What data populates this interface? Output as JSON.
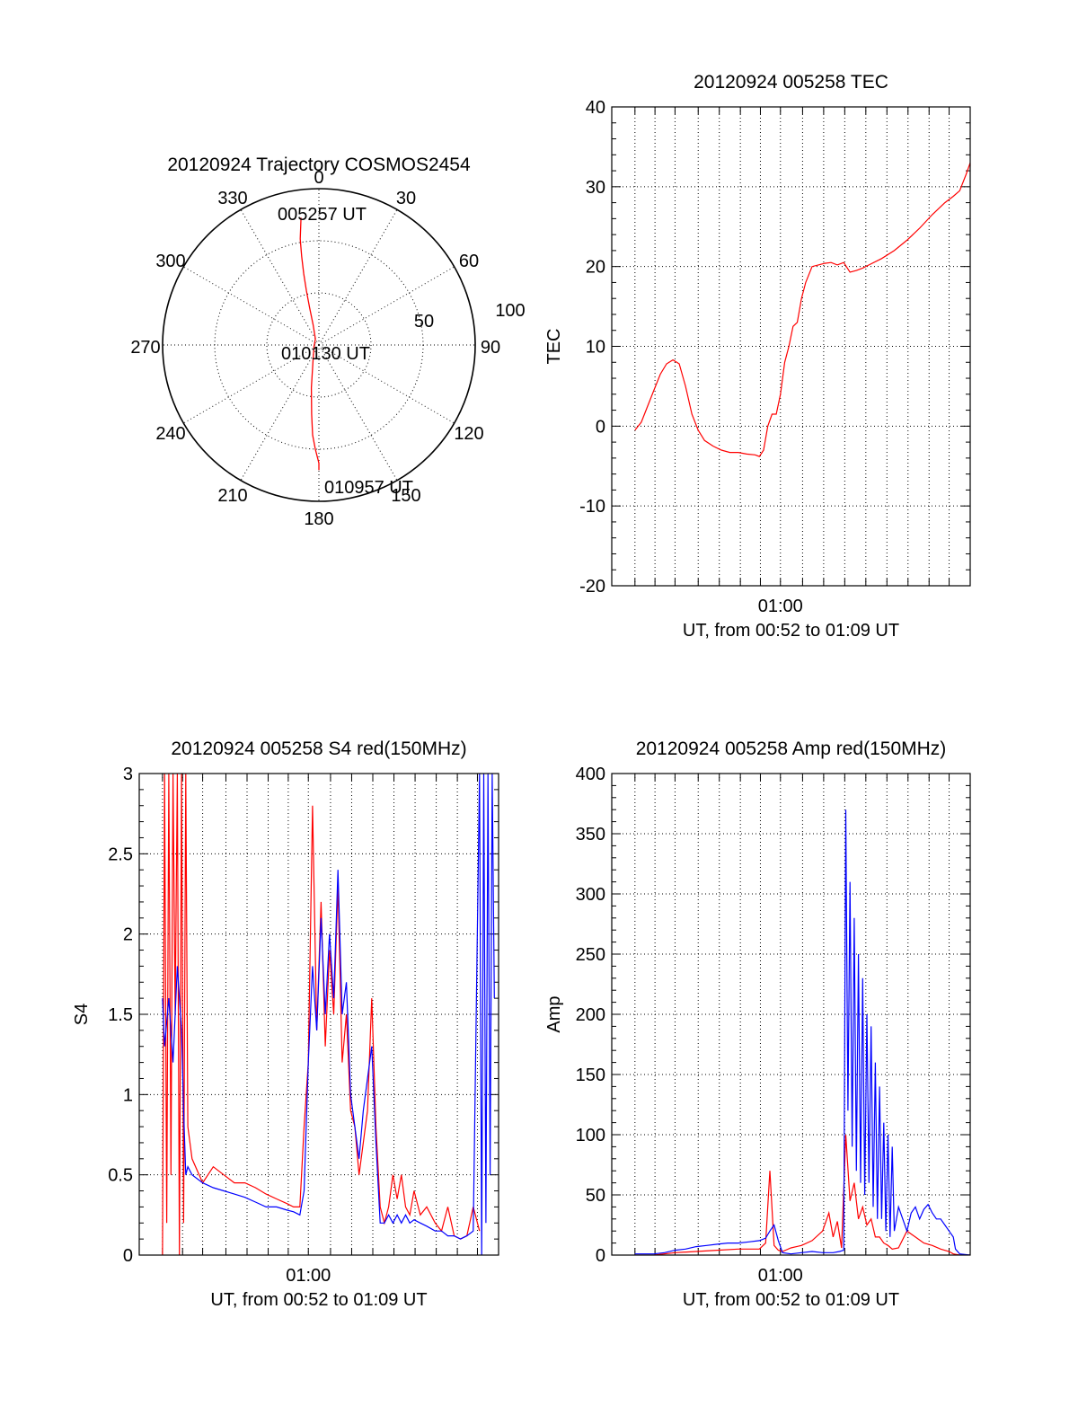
{
  "colors": {
    "red": "#ff0000",
    "blue": "#0000ff",
    "axis": "#000000"
  },
  "chart_data": [
    {
      "type": "polar",
      "title": "20120924 Trajectory COSMOS2454",
      "azimuth_labels": [
        "0",
        "30",
        "60",
        "90",
        "120",
        "150",
        "180",
        "210",
        "240",
        "270",
        "300",
        "330"
      ],
      "radial_labels": [
        "50",
        "100"
      ],
      "annotations": [
        "005257 UT",
        "010130 UT",
        "010957 UT"
      ],
      "series": [
        {
          "color": "red",
          "note": "track points as [azimuth_deg, zenith_angle]",
          "points": [
            [
              352,
              74
            ],
            [
              350,
              62
            ],
            [
              349,
              52
            ],
            [
              348,
              42
            ],
            [
              347,
              32
            ],
            [
              346,
              22
            ],
            [
              344,
              12
            ],
            [
              330,
              4
            ],
            [
              250,
              3
            ],
            [
              200,
              10
            ],
            [
              190,
              25
            ],
            [
              186,
              40
            ],
            [
              184,
              52
            ],
            [
              182,
              60
            ],
            [
              180,
              68
            ],
            [
              180,
              72
            ]
          ]
        }
      ],
      "ylim": [
        0,
        100
      ]
    },
    {
      "type": "line",
      "title": "20120924 005258 TEC",
      "xlabel": "UT, from 00:52 to 01:09 UT",
      "ylabel": "TEC",
      "x_tick_label": "01:00",
      "y_tick_labels": [
        "-20",
        "-10",
        "0",
        "10",
        "20",
        "30",
        "40"
      ],
      "xlim": [
        52.0,
        69.0
      ],
      "ylim": [
        -20,
        40
      ],
      "grid": true,
      "series": [
        {
          "color": "red",
          "x": [
            53.1,
            53.4,
            53.7,
            54.0,
            54.3,
            54.6,
            54.9,
            55.2,
            55.5,
            55.8,
            56.1,
            56.4,
            56.8,
            57.2,
            57.6,
            58.0,
            58.4,
            58.8,
            59.0,
            59.2,
            59.4,
            59.6,
            59.8,
            60.0,
            60.2,
            60.4,
            60.6,
            60.8,
            61.0,
            61.2,
            61.5,
            61.8,
            62.1,
            62.4,
            62.7,
            63.0,
            63.3,
            63.6,
            63.9,
            64.2,
            64.8,
            65.4,
            66.0,
            66.6,
            67.2,
            67.8,
            68.2,
            68.5,
            68.8,
            69.0
          ],
          "y": [
            -0.5,
            0.5,
            2.5,
            4.5,
            6.5,
            7.8,
            8.3,
            7.8,
            5,
            1.5,
            -0.5,
            -1.8,
            -2.5,
            -3,
            -3.3,
            -3.3,
            -3.5,
            -3.6,
            -3.8,
            -3,
            0,
            1.5,
            1.5,
            4,
            8,
            10,
            12.5,
            13,
            16,
            18,
            20,
            20.2,
            20.4,
            20.5,
            20.2,
            20.5,
            19.3,
            19.5,
            19.8,
            20.2,
            21,
            22,
            23.3,
            24.8,
            26.5,
            28,
            28.8,
            29.5,
            31.5,
            33
          ]
        }
      ]
    },
    {
      "type": "line",
      "title": "20120924 005258 S4 red(150MHz)",
      "xlabel": "UT, from 00:52 to 01:09 UT",
      "ylabel": "S4",
      "x_tick_label": "01:00",
      "y_tick_labels": [
        "0",
        "0.5",
        "1",
        "1.5",
        "2",
        "2.5",
        "3"
      ],
      "xlim": [
        52.0,
        69.0
      ],
      "ylim": [
        0,
        3
      ],
      "grid": true,
      "series": [
        {
          "color": "red",
          "x": [
            53.1,
            53.2,
            53.3,
            53.4,
            53.5,
            53.6,
            53.7,
            53.8,
            53.9,
            54.0,
            54.1,
            54.2,
            54.3,
            54.5,
            55.0,
            55.5,
            56.0,
            56.5,
            57.0,
            57.5,
            58.0,
            58.5,
            59.0,
            59.3,
            59.6,
            59.8,
            60.0,
            60.2,
            60.4,
            60.6,
            60.8,
            61.0,
            61.2,
            61.4,
            61.6,
            61.8,
            62.0,
            62.2,
            62.4,
            62.6,
            62.8,
            63.0,
            63.2,
            63.4,
            63.6,
            63.8,
            64.0,
            64.2,
            64.4,
            64.6,
            64.8,
            65.0,
            65.3,
            65.6,
            66.0,
            66.3,
            66.6,
            66.9,
            67.2,
            67.5,
            67.8,
            68.1
          ],
          "y": [
            0,
            3,
            0.2,
            3,
            0.5,
            3,
            1.5,
            3,
            0,
            3,
            0.2,
            3,
            0.8,
            0.6,
            0.45,
            0.55,
            0.5,
            0.45,
            0.45,
            0.42,
            0.38,
            0.35,
            0.32,
            0.3,
            0.3,
            0.8,
            1.2,
            2.8,
            1.4,
            2.2,
            1.3,
            1.9,
            1.5,
            2.3,
            1.2,
            1.5,
            0.9,
            0.8,
            0.5,
            0.7,
            0.9,
            1.6,
            0.8,
            0.3,
            0.2,
            0.3,
            0.5,
            0.35,
            0.5,
            0.3,
            0.25,
            0.4,
            0.25,
            0.3,
            0.2,
            0.15,
            0.3,
            0.12,
            0.1,
            0.12,
            0.3,
            0.15
          ]
        },
        {
          "color": "blue",
          "x": [
            53.1,
            53.2,
            53.4,
            53.6,
            53.8,
            54.0,
            54.1,
            54.2,
            54.3,
            54.5,
            55.0,
            55.5,
            56.0,
            56.5,
            57.0,
            57.5,
            58.0,
            58.5,
            59.0,
            59.3,
            59.6,
            59.8,
            60.0,
            60.2,
            60.4,
            60.6,
            60.8,
            61.0,
            61.2,
            61.4,
            61.6,
            61.8,
            62.0,
            62.2,
            62.4,
            62.6,
            62.8,
            63.0,
            63.2,
            63.4,
            63.6,
            63.8,
            64.0,
            64.2,
            64.4,
            64.6,
            64.8,
            65.0,
            65.3,
            65.6,
            66.0,
            66.3,
            66.6,
            66.9,
            67.2,
            67.5,
            67.8,
            68.1,
            68.2,
            68.3,
            68.4,
            68.5,
            68.6,
            68.7,
            68.8
          ],
          "y": [
            1.6,
            1.3,
            1.6,
            1.2,
            1.8,
            1.4,
            0.9,
            0.5,
            0.55,
            0.5,
            0.45,
            0.42,
            0.4,
            0.38,
            0.36,
            0.33,
            0.3,
            0.3,
            0.28,
            0.27,
            0.25,
            0.4,
            1.2,
            1.8,
            1.4,
            2.1,
            1.5,
            2.0,
            1.6,
            2.4,
            1.5,
            1.7,
            1.0,
            0.8,
            0.6,
            0.9,
            1.1,
            1.3,
            0.7,
            0.2,
            0.2,
            0.25,
            0.2,
            0.25,
            0.2,
            0.25,
            0.2,
            0.22,
            0.2,
            0.18,
            0.15,
            0.15,
            0.12,
            0.12,
            0.1,
            0.12,
            0.15,
            3,
            0,
            3,
            0.2,
            3,
            0.5,
            3,
            1.6
          ]
        }
      ]
    },
    {
      "type": "line",
      "title": "20120924 005258 Amp red(150MHz)",
      "xlabel": "UT, from 00:52 to 01:09 UT",
      "ylabel": "Amp",
      "x_tick_label": "01:00",
      "y_tick_labels": [
        "0",
        "50",
        "100",
        "150",
        "200",
        "250",
        "300",
        "350",
        "400"
      ],
      "xlim": [
        52.0,
        69.0
      ],
      "ylim": [
        0,
        400
      ],
      "grid": true,
      "series": [
        {
          "color": "red",
          "x": [
            53.1,
            54.0,
            55.0,
            56.0,
            57.0,
            58.0,
            59.0,
            59.3,
            59.5,
            59.7,
            59.9,
            60.1,
            60.5,
            61.0,
            61.5,
            62.0,
            62.3,
            62.5,
            62.7,
            62.9,
            63.1,
            63.3,
            63.5,
            63.7,
            63.9,
            64.1,
            64.3,
            64.5,
            64.7,
            64.9,
            65.1,
            65.3,
            65.6,
            66.0,
            66.4,
            66.8,
            67.2,
            67.6,
            68.0,
            68.2,
            68.5,
            69.0
          ],
          "y": [
            0,
            0,
            2,
            3,
            4,
            5,
            5,
            10,
            70,
            8,
            4,
            3,
            6,
            8,
            12,
            20,
            35,
            15,
            28,
            6,
            100,
            45,
            60,
            30,
            40,
            25,
            30,
            15,
            15,
            10,
            8,
            5,
            6,
            20,
            15,
            10,
            8,
            5,
            3,
            1,
            0,
            0
          ]
        },
        {
          "color": "blue",
          "x": [
            53.1,
            54.0,
            54.5,
            55.0,
            55.5,
            56.0,
            56.5,
            57.0,
            57.5,
            58.0,
            58.5,
            59.0,
            59.3,
            59.5,
            59.7,
            59.9,
            60.1,
            60.5,
            61.0,
            61.5,
            62.0,
            62.5,
            62.8,
            63.0,
            63.1,
            63.2,
            63.3,
            63.4,
            63.5,
            63.6,
            63.7,
            63.8,
            63.9,
            64.0,
            64.1,
            64.2,
            64.3,
            64.4,
            64.5,
            64.6,
            64.7,
            64.8,
            64.9,
            65.0,
            65.1,
            65.2,
            65.3,
            65.4,
            65.5,
            65.6,
            65.8,
            66.0,
            66.2,
            66.4,
            66.6,
            66.8,
            67.0,
            67.2,
            67.4,
            67.6,
            67.8,
            68.0,
            68.2,
            68.3,
            68.5,
            69.0
          ],
          "y": [
            1,
            1,
            2,
            4,
            5,
            7,
            8,
            9,
            10,
            10,
            11,
            12,
            14,
            20,
            25,
            12,
            2,
            1,
            2,
            3,
            2,
            2,
            3,
            4,
            370,
            120,
            310,
            90,
            280,
            70,
            250,
            60,
            230,
            50,
            200,
            60,
            190,
            40,
            160,
            30,
            140,
            30,
            110,
            20,
            100,
            15,
            90,
            20,
            30,
            40,
            30,
            20,
            35,
            40,
            30,
            38,
            42,
            35,
            30,
            30,
            25,
            20,
            15,
            5,
            1,
            0
          ]
        }
      ]
    }
  ]
}
